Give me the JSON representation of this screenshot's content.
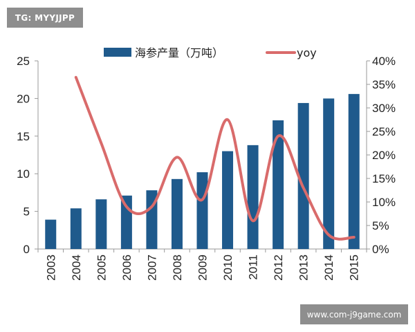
{
  "watermarks": {
    "top": "TG: MYYJJPP",
    "bottom": "www.com-j9game.com"
  },
  "colors": {
    "bar": "#1f5a8c",
    "line": "#d96b6b",
    "axis": "#999999",
    "text": "#222222"
  },
  "chart_data": {
    "type": "bar",
    "categories": [
      "2003",
      "2004",
      "2005",
      "2006",
      "2007",
      "2008",
      "2009",
      "2010",
      "2011",
      "2012",
      "2013",
      "2014",
      "2015"
    ],
    "series": [
      {
        "name": "海参产量（万吨）",
        "type": "bar",
        "axis": "left",
        "values": [
          3.9,
          5.4,
          6.6,
          7.1,
          7.8,
          9.3,
          10.2,
          13.0,
          13.8,
          17.1,
          19.4,
          20.0,
          20.6
        ]
      },
      {
        "name": "yoy",
        "type": "line",
        "axis": "right",
        "values": [
          null,
          0.365,
          0.225,
          0.09,
          0.09,
          0.195,
          0.105,
          0.275,
          0.06,
          0.24,
          0.13,
          0.03,
          0.025
        ]
      }
    ],
    "ylim": [
      0,
      25
    ],
    "y_ticks": [
      "0",
      "5",
      "10",
      "15",
      "20",
      "25"
    ],
    "y2lim": [
      0,
      0.4
    ],
    "y2_ticks": [
      "0%",
      "5%",
      "10%",
      "15%",
      "20%",
      "25%",
      "30%",
      "35%",
      "40%"
    ],
    "legend_position": "top",
    "grid": false
  }
}
